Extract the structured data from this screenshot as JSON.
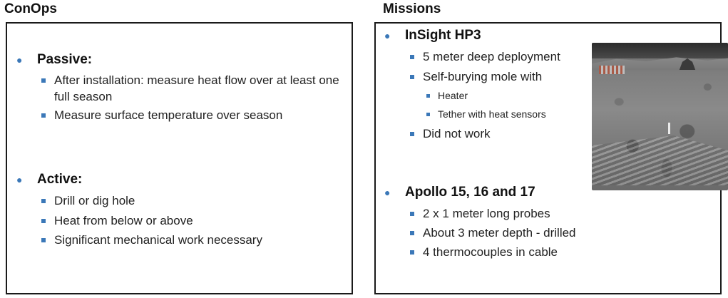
{
  "conops": {
    "title": "ConOps",
    "sections": [
      {
        "heading": "Passive:",
        "items": [
          "After installation: measure heat flow over at least one full season",
          "Measure surface temperature over season"
        ]
      },
      {
        "heading": "Active:",
        "items": [
          "Drill or dig hole",
          "Heat from below or above",
          "Significant mechanical work necessary"
        ]
      }
    ]
  },
  "missions": {
    "title": "Missions",
    "sections": [
      {
        "heading": "InSight HP3",
        "items": [
          "5 meter deep deployment",
          "Self-burying mole with",
          "Did not work"
        ],
        "subitems": [
          "Heater",
          "Tether with heat sensors"
        ]
      },
      {
        "heading": "Apollo 15, 16 and 17",
        "items": [
          "2 x 1 meter long probes",
          "About 3 meter depth - drilled",
          "4 thermocouples in cable"
        ]
      }
    ]
  },
  "colors": {
    "bullet": "#3b78b8",
    "border": "#1a1a1a"
  }
}
